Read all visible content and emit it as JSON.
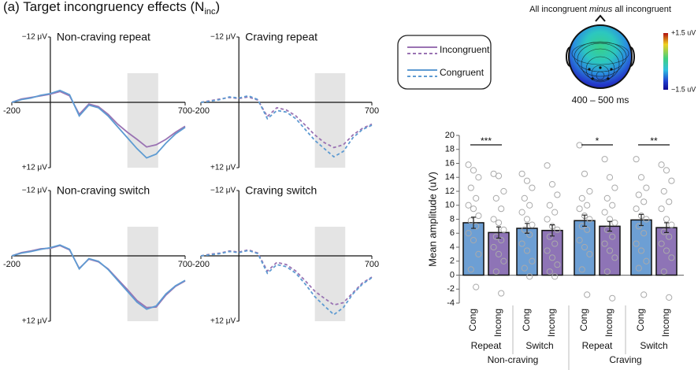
{
  "chart_data": [
    {
      "type": "line",
      "title": "(a) Target incongruency effects (N",
      "title_sub": "inc",
      "title_end": ")",
      "x": [
        -200,
        -150,
        -100,
        -50,
        0,
        50,
        100,
        150,
        200,
        250,
        300,
        350,
        400,
        450,
        500,
        550,
        600,
        650,
        700
      ],
      "xlim": [
        -200,
        700
      ],
      "xticks": [
        -200,
        700
      ],
      "ylim": [
        -12,
        12
      ],
      "yticks": [
        {
          "value": -12,
          "label": "−12 μV"
        },
        {
          "value": 12,
          "label": "+12 μV"
        }
      ],
      "y_inverted": true,
      "shade": [
        400,
        560
      ],
      "legend": [
        {
          "name": "Incongruent",
          "color": "#9a73b3"
        },
        {
          "name": "Congruent",
          "color": "#5e9bd2"
        }
      ],
      "panels": [
        {
          "title": "Non-craving repeat",
          "dashed": false,
          "series": [
            {
              "values": [
                0,
                -0.6,
                -0.9,
                -1.2,
                -1.5,
                -2.0,
                -1.2,
                2.2,
                0.3,
                0.8,
                2.2,
                4.0,
                5.5,
                6.8,
                8.2,
                7.8,
                6.8,
                5.5,
                4.4
              ]
            },
            {
              "values": [
                0,
                -0.5,
                -0.8,
                -1.3,
                -1.6,
                -2.2,
                -1.4,
                2.5,
                0.5,
                1.0,
                2.5,
                4.5,
                6.5,
                8.5,
                10.2,
                9.5,
                7.5,
                5.8,
                4.6
              ]
            }
          ]
        },
        {
          "title": "Craving repeat",
          "dashed": true,
          "series": [
            {
              "values": [
                0,
                -0.3,
                -0.6,
                -0.9,
                -0.7,
                -1.0,
                -0.4,
                2.6,
                1.0,
                1.4,
                2.5,
                4.2,
                6.0,
                7.4,
                8.3,
                7.8,
                6.0,
                4.8,
                4.0
              ]
            },
            {
              "values": [
                0,
                -0.2,
                -0.5,
                -1.0,
                -0.8,
                -1.2,
                -0.5,
                3.0,
                1.5,
                1.8,
                3.0,
                5.0,
                7.0,
                8.5,
                10.0,
                9.0,
                6.5,
                5.0,
                4.2
              ]
            }
          ]
        },
        {
          "title": "Non-craving switch",
          "dashed": false,
          "series": [
            {
              "values": [
                0,
                -0.6,
                -0.9,
                -1.3,
                -1.4,
                -1.9,
                -1.1,
                2.3,
                0.6,
                1.1,
                2.4,
                4.3,
                6.2,
                8.2,
                9.5,
                9.4,
                7.2,
                5.6,
                4.6
              ]
            },
            {
              "values": [
                0,
                -0.5,
                -0.8,
                -1.2,
                -1.5,
                -2.0,
                -1.2,
                2.4,
                0.5,
                1.0,
                2.5,
                4.5,
                6.5,
                8.5,
                9.8,
                9.2,
                7.0,
                5.5,
                4.5
              ]
            }
          ]
        },
        {
          "title": "Craving switch",
          "dashed": true,
          "series": [
            {
              "values": [
                0,
                -0.3,
                -0.5,
                -0.9,
                -0.7,
                -1.1,
                -0.5,
                2.8,
                1.2,
                1.6,
                2.8,
                4.6,
                6.5,
                7.8,
                9.0,
                8.6,
                6.8,
                5.0,
                3.9
              ]
            },
            {
              "values": [
                0,
                -0.2,
                -0.4,
                -0.8,
                -0.6,
                -1.0,
                -0.4,
                3.2,
                1.6,
                2.0,
                3.2,
                5.2,
                7.5,
                9.2,
                10.8,
                9.5,
                7.0,
                5.2,
                4.0
              ]
            }
          ]
        }
      ]
    },
    {
      "type": "topomap",
      "title": "All incongruent ",
      "title_em": "minus",
      "title_end": " all incongruent",
      "colorbar_max": "+1.5 uV",
      "colorbar_min": "−1.5 uV",
      "caption": "400 – 500 ms"
    },
    {
      "type": "bar",
      "y_label": "Mean amplitude (uV)",
      "categories": [
        "Cong",
        "Incong",
        "Cong",
        "Incong",
        "Cong",
        "Incong",
        "Cong",
        "Incong"
      ],
      "values": [
        7.5,
        6.1,
        6.7,
        6.4,
        7.8,
        7.0,
        7.9,
        6.8
      ],
      "errors": [
        0.8,
        0.8,
        0.7,
        0.8,
        0.8,
        0.7,
        0.8,
        0.7
      ],
      "colors": [
        "#6d9fd4",
        "#8e74b6",
        "#6d9fd4",
        "#8e74b6",
        "#6d9fd4",
        "#8e74b6",
        "#6d9fd4",
        "#8e74b6"
      ],
      "ylim": [
        -4,
        20
      ],
      "yticks": [
        -4,
        -2,
        0,
        2,
        4,
        6,
        8,
        10,
        12,
        14,
        16,
        18,
        20
      ],
      "points": [
        [
          15.8,
          15,
          14,
          12.5,
          11,
          10,
          9.5,
          8.5,
          7.8,
          7,
          6,
          5,
          3,
          0.8,
          -1.7
        ],
        [
          14.5,
          14.2,
          12,
          11,
          9.5,
          8,
          7.5,
          6.5,
          5.5,
          5,
          4,
          3,
          2,
          0.5,
          -2.6
        ],
        [
          14.5,
          13.5,
          12.5,
          11,
          10,
          9,
          8,
          7.2,
          6.5,
          5.8,
          4.5,
          3.5,
          2,
          1,
          -0.2
        ],
        [
          15.7,
          13,
          11.5,
          10,
          9,
          8,
          7,
          6.5,
          5.5,
          4.5,
          3.5,
          2.5,
          1.5,
          0.5,
          -0.2
        ],
        [
          18.6,
          14.5,
          12,
          11,
          10,
          9.5,
          8.5,
          8,
          7,
          6.5,
          5,
          4,
          3,
          0.8,
          -2.8
        ],
        [
          16.6,
          14,
          12.5,
          11,
          10,
          9,
          8,
          7.5,
          6.5,
          5.5,
          4.5,
          3.5,
          2.5,
          0.5,
          -3.3
        ],
        [
          16.6,
          14,
          12.5,
          11.5,
          10.5,
          9.5,
          8.5,
          8,
          7,
          6,
          4.5,
          3.5,
          2,
          1,
          -2.8
        ],
        [
          15.8,
          15,
          13.5,
          12,
          10.5,
          9.5,
          8,
          7.2,
          6.2,
          5.5,
          4.5,
          3.5,
          2.5,
          0.5,
          -3.2
        ]
      ],
      "groups": [
        {
          "label": "Repeat",
          "sig": "***"
        },
        {
          "label": "Switch"
        },
        {
          "label": "Repeat",
          "sig": "*"
        },
        {
          "label": "Switch",
          "sig": "**"
        }
      ],
      "supergroups": [
        {
          "label": "Non-craving"
        },
        {
          "label": "Craving"
        }
      ]
    }
  ]
}
